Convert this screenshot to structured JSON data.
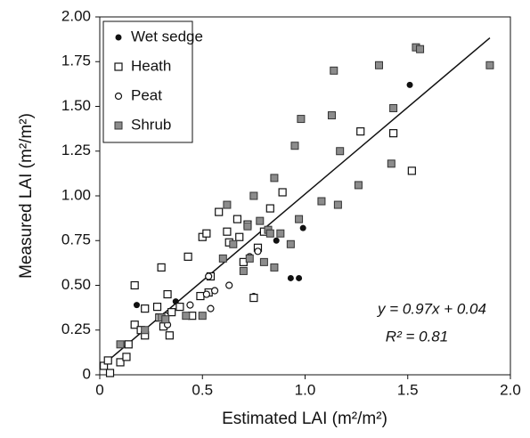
{
  "chart_data": {
    "type": "scatter",
    "xlabel": "Estimated LAI (m²/m²)",
    "ylabel": "Measured LAI (m²/m²)",
    "xlim": [
      0,
      2.0
    ],
    "ylim": [
      0,
      2.0
    ],
    "xticks": [
      0,
      0.5,
      {
        "value": 1.0,
        "label": "1.0"
      },
      1.5,
      {
        "value": 2.0,
        "label": "2.0"
      }
    ],
    "yticks": [
      0,
      0.25,
      {
        "value": 0.5,
        "label": "0.50"
      },
      0.75,
      {
        "value": 1.0,
        "label": "1.00"
      },
      1.25,
      {
        "value": 1.5,
        "label": "1.50"
      },
      1.75,
      {
        "value": 2.0,
        "label": "2.00"
      }
    ],
    "legend": "top-left",
    "series": [
      {
        "name": "Wet sedge",
        "marker": "filled-circle",
        "color": "#111111",
        "x": [
          1.51,
          0.99,
          0.86,
          0.93,
          0.97,
          0.18,
          0.37,
          0.75
        ],
        "values": [
          1.62,
          0.82,
          0.75,
          0.54,
          0.54,
          0.39,
          0.41,
          0.44
        ]
      },
      {
        "name": "Heath",
        "marker": "open-square",
        "color": "#111111",
        "x": [
          0.02,
          0.05,
          0.04,
          0.1,
          0.13,
          0.14,
          0.17,
          0.17,
          0.2,
          0.22,
          0.22,
          0.28,
          0.29,
          0.3,
          0.31,
          0.33,
          0.34,
          0.35,
          0.39,
          0.43,
          0.45,
          0.49,
          0.5,
          0.52,
          0.53,
          0.54,
          0.58,
          0.62,
          0.63,
          0.67,
          0.68,
          0.7,
          0.72,
          0.75,
          0.77,
          0.8,
          0.83,
          0.89,
          1.27,
          1.43,
          1.52
        ],
        "values": [
          0.05,
          0.01,
          0.08,
          0.07,
          0.1,
          0.17,
          0.5,
          0.28,
          0.25,
          0.22,
          0.37,
          0.38,
          0.32,
          0.6,
          0.27,
          0.45,
          0.22,
          0.35,
          0.38,
          0.66,
          0.33,
          0.44,
          0.77,
          0.79,
          0.46,
          0.55,
          0.91,
          0.8,
          0.74,
          0.87,
          0.77,
          0.63,
          0.84,
          0.43,
          0.71,
          0.8,
          0.93,
          1.02,
          1.36,
          1.35,
          1.14
        ]
      },
      {
        "name": "Peat",
        "marker": "open-circle",
        "color": "#111111",
        "x": [
          0.32,
          0.33,
          0.44,
          0.52,
          0.54,
          0.56,
          0.63,
          0.73,
          0.77,
          0.53
        ],
        "values": [
          0.33,
          0.28,
          0.39,
          0.45,
          0.37,
          0.47,
          0.5,
          0.66,
          0.69,
          0.55
        ]
      },
      {
        "name": "Shrub",
        "marker": "gray-square",
        "color": "#8c8c8c",
        "x": [
          0.1,
          0.22,
          0.3,
          0.42,
          0.5,
          0.32,
          0.6,
          0.62,
          0.65,
          0.7,
          0.72,
          0.75,
          0.73,
          0.78,
          0.8,
          0.82,
          0.83,
          0.85,
          0.85,
          0.93,
          0.95,
          0.97,
          0.98,
          1.08,
          1.13,
          1.14,
          1.16,
          1.17,
          1.26,
          1.36,
          1.42,
          1.43,
          1.54,
          1.56,
          1.9,
          0.88
        ],
        "values": [
          0.17,
          0.25,
          0.32,
          0.33,
          0.33,
          0.31,
          0.65,
          0.95,
          0.73,
          0.58,
          0.83,
          1.0,
          0.65,
          0.86,
          0.63,
          0.81,
          0.79,
          0.6,
          1.1,
          0.73,
          1.28,
          0.87,
          1.43,
          0.97,
          1.45,
          1.7,
          0.95,
          1.25,
          1.06,
          1.73,
          1.18,
          1.49,
          1.83,
          1.82,
          1.73,
          0.79
        ]
      }
    ],
    "fit": {
      "slope": 0.97,
      "intercept": 0.04,
      "x_range": [
        0.03,
        1.9
      ]
    },
    "annotations": [
      "y = 0.97x + 0.04",
      "R² = 0.81"
    ]
  }
}
